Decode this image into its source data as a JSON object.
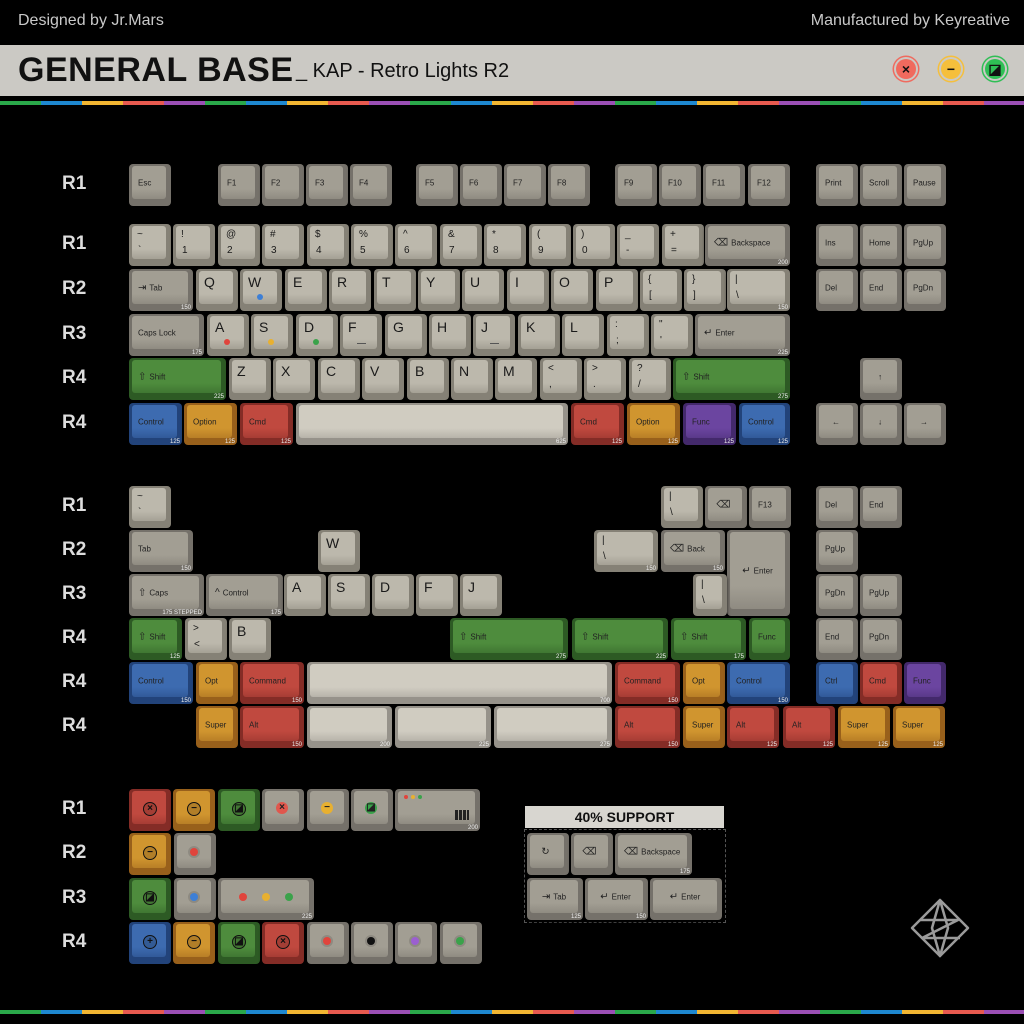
{
  "header": {
    "designer": "Designed by Jr.Mars",
    "manufacturer": "Manufactured by Keyreative",
    "title": "GENERAL BASE",
    "subtitle": "_ KAP - Retro Lights R2",
    "window_buttons": [
      {
        "name": "close",
        "glyph": "×",
        "color": "#f06a5e"
      },
      {
        "name": "minimize",
        "glyph": "−",
        "color": "#f5bf3c"
      },
      {
        "name": "maximize",
        "glyph": "◪",
        "color": "#2fbf55"
      }
    ]
  },
  "palette": {
    "alpha": [
      "#bcb8ac",
      "#858176"
    ],
    "mod": [
      "#a29e93",
      "#75716a"
    ],
    "space": [
      "#d0ccc1",
      "#96928a"
    ],
    "green": [
      "#4e8c3d",
      "#2d5a24"
    ],
    "blue": [
      "#3d6bb0",
      "#22437a"
    ],
    "orange": [
      "#d0952f",
      "#98601b"
    ],
    "red": [
      "#c0493f",
      "#842c26"
    ],
    "purple": [
      "#6b45a0",
      "#43296b"
    ]
  },
  "s1": {
    "labels": [
      "R1",
      "R1",
      "R2",
      "R3",
      "R4",
      "R4"
    ],
    "rows": [
      [
        {
          "m": "Esc"
        },
        {
          "m": "F1"
        },
        {
          "m": "F2"
        },
        {
          "m": "F3"
        },
        {
          "m": "F4"
        },
        {
          "m": "F5"
        },
        {
          "m": "F6"
        },
        {
          "m": "F7"
        },
        {
          "m": "F8"
        },
        {
          "m": "F9"
        },
        {
          "m": "F10"
        },
        {
          "m": "F11"
        },
        {
          "m": "F12"
        },
        {
          "m": "Print"
        },
        {
          "m": "Scroll"
        },
        {
          "m": "Pause"
        }
      ],
      [
        {
          "t": "~",
          "b": "`"
        },
        {
          "t": "!",
          "b": "1"
        },
        {
          "t": "@",
          "b": "2"
        },
        {
          "t": "#",
          "b": "3"
        },
        {
          "t": "$",
          "b": "4"
        },
        {
          "t": "%",
          "b": "5"
        },
        {
          "t": "^",
          "b": "6"
        },
        {
          "t": "&",
          "b": "7"
        },
        {
          "t": "*",
          "b": "8"
        },
        {
          "t": "(",
          "b": "9"
        },
        {
          "t": ")",
          "b": "0"
        },
        {
          "t": "_",
          "b": "-"
        },
        {
          "t": "+",
          "b": "="
        },
        {
          "m": "Backspace",
          "icon": "backspace-icon",
          "s": "200"
        },
        {
          "m": "Ins"
        },
        {
          "m": "Home"
        },
        {
          "m": "PgUp"
        }
      ],
      [
        {
          "m": "Tab",
          "icon": "tab-icon",
          "s": "150"
        },
        {
          "t": "Q"
        },
        {
          "t": "W",
          "dot": "#3d7fd6"
        },
        {
          "t": "E"
        },
        {
          "t": "R"
        },
        {
          "t": "T"
        },
        {
          "t": "Y"
        },
        {
          "t": "U"
        },
        {
          "t": "I"
        },
        {
          "t": "O"
        },
        {
          "t": "P"
        },
        {
          "t": "{",
          "b": "["
        },
        {
          "t": "}",
          "b": "]"
        },
        {
          "t": "|",
          "b": "\\",
          "s": "150"
        },
        {
          "m": "Del"
        },
        {
          "m": "End"
        },
        {
          "m": "PgDn"
        }
      ],
      [
        {
          "m": "Caps Lock",
          "s": "175"
        },
        {
          "t": "A",
          "dot": "#e0443c"
        },
        {
          "t": "S",
          "dot": "#e8b030"
        },
        {
          "t": "D",
          "dot": "#3aa24a"
        },
        {
          "t": "F",
          "bar": true
        },
        {
          "t": "G"
        },
        {
          "t": "H"
        },
        {
          "t": "J",
          "bar": true
        },
        {
          "t": "K"
        },
        {
          "t": "L"
        },
        {
          "t": ":",
          "b": ";"
        },
        {
          "t": "\"",
          "b": "'"
        },
        {
          "m": "Enter",
          "icon": "enter-icon",
          "s": "225"
        }
      ],
      [
        {
          "m": "Shift",
          "icon": "shift-icon",
          "s": "225",
          "c": "green"
        },
        {
          "t": "Z"
        },
        {
          "t": "X"
        },
        {
          "t": "C"
        },
        {
          "t": "V"
        },
        {
          "t": "B"
        },
        {
          "t": "N"
        },
        {
          "t": "M"
        },
        {
          "t": "<",
          "b": ","
        },
        {
          "t": ">",
          "b": "."
        },
        {
          "t": "?",
          "b": "/"
        },
        {
          "m": "Shift",
          "icon": "shift-icon",
          "s": "275",
          "c": "green"
        },
        {
          "m": "↑",
          "center": true
        }
      ],
      [
        {
          "m": "Control",
          "s": "125",
          "c": "blue"
        },
        {
          "m": "Option",
          "s": "125",
          "c": "orange"
        },
        {
          "m": "Cmd",
          "s": "125",
          "c": "red"
        },
        {
          "m": "",
          "s": "625",
          "c": "space"
        },
        {
          "m": "Cmd",
          "s": "125",
          "c": "red"
        },
        {
          "m": "Option",
          "s": "125",
          "c": "orange"
        },
        {
          "m": "Func",
          "s": "125",
          "c": "purple"
        },
        {
          "m": "Control",
          "s": "125",
          "c": "blue"
        },
        {
          "m": "←",
          "center": true
        },
        {
          "m": "↓",
          "center": true
        },
        {
          "m": "→",
          "center": true
        }
      ]
    ]
  },
  "s2": {
    "labels": [
      "R1",
      "R2",
      "R3",
      "R4",
      "R4",
      "R4"
    ],
    "rows": [
      [
        {
          "t": "~",
          "b": "`"
        },
        {
          "t": "|",
          "b": "\\"
        },
        {
          "m": "",
          "icon": "backspace-icon",
          "center": true
        },
        {
          "m": "F13"
        },
        {
          "m": "Del"
        },
        {
          "m": "End"
        }
      ],
      [
        {
          "m": "Tab",
          "s": "150"
        },
        {
          "t": "W"
        },
        {
          "t": "|",
          "b": "\\",
          "s": "150"
        },
        {
          "m": "Back",
          "icon": "backspace-icon",
          "s": "150"
        },
        {
          "m": "Enter",
          "icon": "enter-icon",
          "center": true
        },
        {
          "m": "PgUp"
        }
      ],
      [
        {
          "m": "Caps",
          "icon": "shift-icon",
          "s": "175 STEPPED"
        },
        {
          "m": "Control",
          "icon": "control-icon",
          "s": "175"
        },
        {
          "t": "A"
        },
        {
          "t": "S"
        },
        {
          "t": "D"
        },
        {
          "t": "F"
        },
        {
          "t": "J"
        },
        {
          "t": "|",
          "b": "\\"
        },
        {
          "m": "PgDn"
        },
        {
          "m": "PgUp"
        }
      ],
      [
        {
          "m": "Shift",
          "icon": "shift-icon",
          "s": "125",
          "c": "green"
        },
        {
          "t": ">",
          "b": "<"
        },
        {
          "t": "B"
        },
        {
          "m": "Shift",
          "icon": "shift-icon",
          "s": "275",
          "c": "green"
        },
        {
          "m": "Shift",
          "icon": "shift-icon",
          "s": "225",
          "c": "green"
        },
        {
          "m": "Shift",
          "icon": "shift-icon",
          "s": "175",
          "c": "green"
        },
        {
          "m": "Func",
          "c": "green"
        },
        {
          "m": "End"
        },
        {
          "m": "PgDn"
        }
      ],
      [
        {
          "m": "Control",
          "s": "150",
          "c": "blue"
        },
        {
          "m": "Opt",
          "c": "orange"
        },
        {
          "m": "Command",
          "s": "150",
          "c": "red"
        },
        {
          "m": "",
          "s": "700",
          "c": "space"
        },
        {
          "m": "Command",
          "s": "150",
          "c": "red"
        },
        {
          "m": "Opt",
          "c": "orange"
        },
        {
          "m": "Control",
          "s": "150",
          "c": "blue"
        },
        {
          "m": "Ctrl",
          "c": "blue"
        },
        {
          "m": "Cmd",
          "c": "red"
        },
        {
          "m": "Func",
          "c": "purple"
        }
      ],
      [
        {
          "m": "Super",
          "c": "orange"
        },
        {
          "m": "Alt",
          "s": "150",
          "c": "red"
        },
        {
          "m": "",
          "s": "200",
          "c": "space"
        },
        {
          "m": "",
          "s": "225",
          "c": "space"
        },
        {
          "m": "",
          "s": "275",
          "c": "space"
        },
        {
          "m": "Alt",
          "s": "150",
          "c": "red"
        },
        {
          "m": "Super",
          "c": "orange"
        },
        {
          "m": "Alt",
          "s": "125",
          "c": "red"
        },
        {
          "m": "Alt",
          "s": "125",
          "c": "red"
        },
        {
          "m": "Super",
          "s": "125",
          "c": "orange"
        },
        {
          "m": "Super",
          "s": "125",
          "c": "orange"
        }
      ]
    ]
  },
  "s3": {
    "labels": [
      "R1",
      "R2",
      "R3",
      "R4"
    ],
    "rows": [
      [
        {
          "c": "red",
          "icon": "close-icon"
        },
        {
          "c": "orange",
          "icon": "minimize-icon"
        },
        {
          "c": "green",
          "icon": "maximize-icon"
        },
        {
          "c": "mod",
          "icon": "close-icon",
          "ic": "#e0574d"
        },
        {
          "c": "mod",
          "icon": "minimize-icon",
          "ic": "#e8b030"
        },
        {
          "c": "mod",
          "icon": "maximize-icon",
          "ic": "#3aa24a"
        },
        {
          "c": "mod",
          "icon": "window-icon",
          "s": "200"
        }
      ],
      [
        {
          "c": "orange",
          "icon": "minimize-icon"
        },
        {
          "c": "mod",
          "dot": "#e0443c"
        }
      ],
      [
        {
          "c": "green",
          "icon": "maximize-icon"
        },
        {
          "c": "mod",
          "dot": "#3d7fd6"
        },
        {
          "c": "mod",
          "dots": [
            "#e0443c",
            "#e8b030",
            "#3aa24a"
          ],
          "s": "225"
        }
      ],
      [
        {
          "c": "blue",
          "icon": "plus-icon"
        },
        {
          "c": "orange",
          "icon": "minimize-icon"
        },
        {
          "c": "green",
          "icon": "maximize-icon"
        },
        {
          "c": "red",
          "icon": "close-icon"
        },
        {
          "c": "mod",
          "dot": "#e0443c"
        },
        {
          "c": "mod",
          "dot": "#111111"
        },
        {
          "c": "mod",
          "dot": "#9b5fd0"
        },
        {
          "c": "mod",
          "dot": "#3aa24a"
        }
      ]
    ]
  },
  "s4": {
    "title": "40% SUPPORT",
    "rows": [
      [
        {
          "m": "",
          "icon": "reload-icon",
          "center": true
        },
        {
          "m": "",
          "icon": "backspace-icon",
          "center": true
        },
        {
          "m": "Backspace",
          "icon": "backspace-icon",
          "s": "175"
        }
      ],
      [
        {
          "m": "Tab",
          "icon": "tab-icon",
          "s": "125",
          "center": true
        },
        {
          "m": "Enter",
          "icon": "enter-icon",
          "s": "150",
          "center": true
        },
        {
          "m": "Enter",
          "icon": "enter-icon",
          "center": true
        }
      ]
    ]
  }
}
